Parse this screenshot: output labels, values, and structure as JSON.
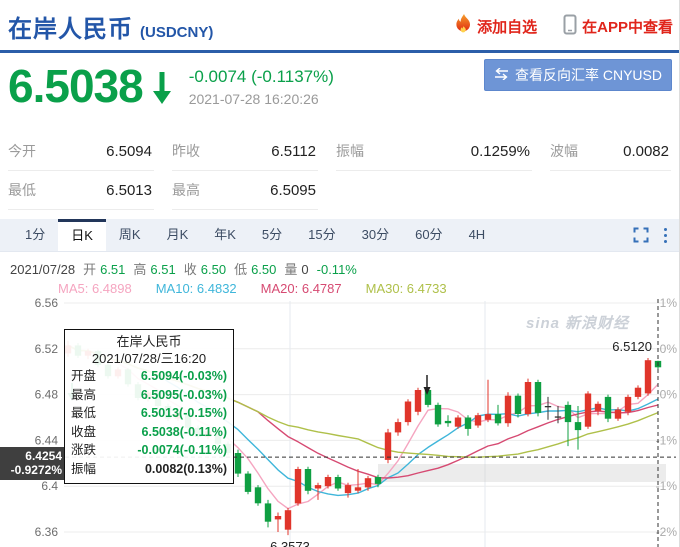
{
  "header": {
    "title": "在岸人民币",
    "symbol": "(USDCNY)",
    "add_watchlist": "添加自选",
    "view_in_app": "在APP中查看"
  },
  "quote": {
    "price": "6.5038",
    "change": "-0.0074 (-0.1137%)",
    "timestamp": "2021-07-28 16:20:26",
    "reverse_button": "查看反向汇率 CNYUSD",
    "up_color": "#e0352b",
    "down_color": "#0aa04a"
  },
  "stats": {
    "rows": [
      [
        {
          "label": "今开",
          "value": "6.5094"
        },
        {
          "label": "昨收",
          "value": "6.5112"
        },
        {
          "label": "振幅",
          "value": "0.1259%"
        },
        {
          "label": "波幅",
          "value": "0.0082"
        }
      ],
      [
        {
          "label": "最低",
          "value": "6.5013"
        },
        {
          "label": "最高",
          "value": "6.5095"
        }
      ]
    ]
  },
  "tabs": {
    "items": [
      "1分",
      "日K",
      "周K",
      "月K",
      "年K",
      "5分",
      "15分",
      "30分",
      "60分",
      "4H"
    ],
    "active": "日K"
  },
  "info_line": {
    "date": "2021/07/28",
    "segments": [
      {
        "label": "开",
        "value": "6.51",
        "color": "green"
      },
      {
        "label": "高",
        "value": "6.51",
        "color": "green"
      },
      {
        "label": "收",
        "value": "6.50",
        "color": "green"
      },
      {
        "label": "低",
        "value": "6.50",
        "color": "green"
      },
      {
        "label": "量",
        "value": "0",
        "color": "dark"
      }
    ],
    "change": "-0.11%"
  },
  "ma_line": [
    {
      "label": "MA5: 6.4898",
      "color": "#f5a5c0"
    },
    {
      "label": "MA10: 6.4832",
      "color": "#3fb6da"
    },
    {
      "label": "MA20: 6.4787",
      "color": "#d64a72"
    },
    {
      "label": "MA30: 6.4733",
      "color": "#afc04a"
    }
  ],
  "tooltip": {
    "title": "在岸人民币",
    "datetime": "2021/07/28/三16:20",
    "rows": [
      {
        "label": "开盘",
        "value": "6.5094(-0.03%)",
        "color": "green"
      },
      {
        "label": "最高",
        "value": "6.5095(-0.03%)",
        "color": "green"
      },
      {
        "label": "最低",
        "value": "6.5013(-0.15%)",
        "color": "green"
      },
      {
        "label": "收盘",
        "value": "6.5038(-0.11%)",
        "color": "green"
      },
      {
        "label": "涨跌",
        "value": "-0.0074(-0.11%)",
        "color": "green"
      },
      {
        "label": "振幅",
        "value": "0.0082(0.13%)",
        "color": "black"
      }
    ]
  },
  "chart_data": {
    "type": "candlestick",
    "title": "在岸人民币 USDCNY 日K",
    "watermark": "sina 新浪财经",
    "y_axis_left": {
      "labels": [
        "6.56",
        "6.52",
        "6.48",
        "6.44",
        "6.4",
        "6.36"
      ],
      "prices": [
        6.56,
        6.52,
        6.48,
        6.44,
        6.4,
        6.36
      ]
    },
    "y_axis_right": {
      "labels": [
        "1%",
        "0%",
        "0%",
        "-1%",
        "-1%",
        "-2%"
      ]
    },
    "up_color": "#e0352b",
    "down_color": "#0f9f42",
    "doji_color": "#333333",
    "doji_indices": [
      48,
      49
    ],
    "candles": [
      [
        6.516,
        6.527,
        6.513,
        6.523
      ],
      [
        6.523,
        6.525,
        6.512,
        6.514
      ],
      [
        6.514,
        6.52,
        6.511,
        6.518
      ],
      [
        6.518,
        6.519,
        6.504,
        6.506
      ],
      [
        6.506,
        6.508,
        6.494,
        6.496
      ],
      [
        6.496,
        6.504,
        6.494,
        6.502
      ],
      [
        6.502,
        6.503,
        6.487,
        6.489
      ],
      [
        6.489,
        6.491,
        6.475,
        6.477
      ],
      [
        6.477,
        6.484,
        6.474,
        6.482
      ],
      [
        6.482,
        6.483,
        6.468,
        6.47
      ],
      [
        6.47,
        6.472,
        6.457,
        6.459
      ],
      [
        6.459,
        6.466,
        6.457,
        6.464
      ],
      [
        6.464,
        6.465,
        6.449,
        6.451
      ],
      [
        6.451,
        6.453,
        6.441,
        6.443
      ],
      [
        6.443,
        6.45,
        6.441,
        6.448
      ],
      [
        6.448,
        6.449,
        6.435,
        6.437
      ],
      [
        6.437,
        6.439,
        6.427,
        6.429
      ],
      [
        6.429,
        6.432,
        6.408,
        6.411
      ],
      [
        6.411,
        6.413,
        6.393,
        6.395
      ],
      [
        6.399,
        6.401,
        6.383,
        6.385
      ],
      [
        6.385,
        6.388,
        6.364,
        6.369
      ],
      [
        6.371,
        6.377,
        6.36,
        6.374
      ],
      [
        6.362,
        6.381,
        6.3573,
        6.379
      ],
      [
        6.385,
        6.417,
        6.383,
        6.415
      ],
      [
        6.415,
        6.417,
        6.393,
        6.396
      ],
      [
        6.398,
        6.403,
        6.388,
        6.401
      ],
      [
        6.4,
        6.41,
        6.398,
        6.408
      ],
      [
        6.408,
        6.41,
        6.396,
        6.398
      ],
      [
        6.394,
        6.403,
        6.39,
        6.401
      ],
      [
        6.396,
        6.415,
        6.394,
        6.399
      ],
      [
        6.399,
        6.409,
        6.396,
        6.407
      ],
      [
        6.408,
        6.41,
        6.399,
        6.402
      ],
      [
        6.423,
        6.45,
        6.42,
        6.447
      ],
      [
        6.447,
        6.459,
        6.444,
        6.456
      ],
      [
        6.456,
        6.476,
        6.453,
        6.474
      ],
      [
        6.465,
        6.486,
        6.462,
        6.484
      ],
      [
        6.484,
        6.486,
        6.469,
        6.471
      ],
      [
        6.471,
        6.473,
        6.452,
        6.454
      ],
      [
        6.457,
        6.462,
        6.452,
        6.455
      ],
      [
        6.452,
        6.462,
        6.45,
        6.46
      ],
      [
        6.46,
        6.462,
        6.444,
        6.45
      ],
      [
        6.453,
        6.464,
        6.451,
        6.462
      ],
      [
        6.458,
        6.493,
        6.456,
        6.463
      ],
      [
        6.463,
        6.471,
        6.453,
        6.455
      ],
      [
        6.455,
        6.482,
        6.452,
        6.479
      ],
      [
        6.479,
        6.481,
        6.46,
        6.463
      ],
      [
        6.463,
        6.494,
        6.461,
        6.491
      ],
      [
        6.491,
        6.493,
        6.461,
        6.464
      ],
      [
        6.47,
        6.478,
        6.458,
        6.47
      ],
      [
        6.461,
        6.47,
        6.455,
        6.46
      ],
      [
        6.471,
        6.474,
        6.435,
        6.456
      ],
      [
        6.456,
        6.47,
        6.432,
        6.449
      ],
      [
        6.452,
        6.483,
        6.45,
        6.481
      ],
      [
        6.466,
        6.474,
        6.462,
        6.472
      ],
      [
        6.478,
        6.48,
        6.456,
        6.459
      ],
      [
        6.459,
        6.469,
        6.457,
        6.467
      ],
      [
        6.465,
        6.48,
        6.462,
        6.478
      ],
      [
        6.478,
        6.488,
        6.476,
        6.486
      ],
      [
        6.481,
        6.512,
        6.479,
        6.51
      ],
      [
        6.5094,
        6.5095,
        6.5013,
        6.5038
      ]
    ],
    "moving_averages": [
      {
        "name": "MA5",
        "period": 5,
        "color": "#f5a5c0"
      },
      {
        "name": "MA10",
        "period": 10,
        "color": "#3fb6da"
      },
      {
        "name": "MA20",
        "period": 20,
        "color": "#d64a72"
      },
      {
        "name": "MA30",
        "period": 30,
        "color": "#afc04a"
      }
    ],
    "annotations": {
      "high_label": "6.5120",
      "low_label": "6.3573",
      "crosshair_price_label": "6.4254",
      "crosshair_pct_label": "-0.9272%"
    }
  }
}
